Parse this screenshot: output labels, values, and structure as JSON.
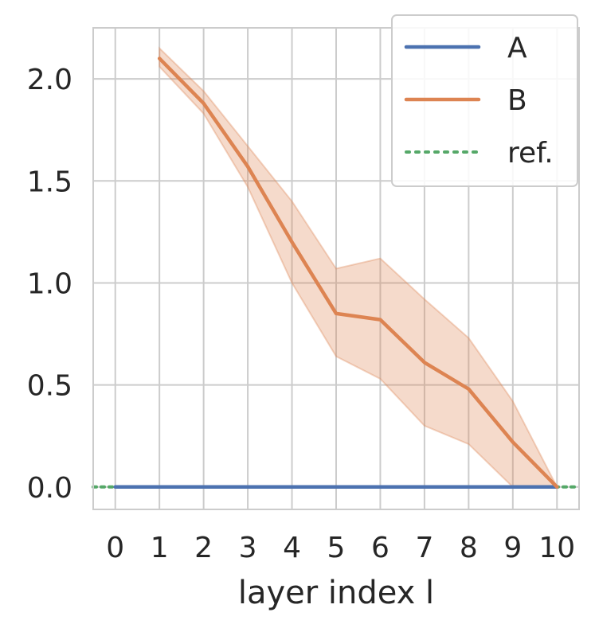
{
  "chart_data": {
    "type": "line",
    "title": "",
    "xlabel": "layer index l",
    "ylabel": "",
    "xlim": [
      -0.5,
      10.5
    ],
    "ylim": [
      -0.11,
      2.25
    ],
    "x_ticks": [
      0,
      1,
      2,
      3,
      4,
      5,
      6,
      7,
      8,
      9,
      10
    ],
    "y_ticks": [
      0.0,
      0.5,
      1.0,
      1.5,
      2.0
    ],
    "x_tick_labels": [
      "0",
      "1",
      "2",
      "3",
      "4",
      "5",
      "6",
      "7",
      "8",
      "9",
      "10"
    ],
    "y_tick_labels": [
      "0.0",
      "0.5",
      "1.0",
      "1.5",
      "2.0"
    ],
    "grid": true,
    "legend_position": "top-right",
    "series": [
      {
        "name": "A",
        "style": "solid",
        "color": "#4c72b0",
        "x": [
          0,
          1,
          2,
          3,
          4,
          5,
          6,
          7,
          8,
          9,
          10
        ],
        "y": [
          0,
          0,
          0,
          0,
          0,
          0,
          0,
          0,
          0,
          0,
          0
        ]
      },
      {
        "name": "B",
        "style": "solid",
        "color": "#dd8452",
        "band_color": "#dd8452",
        "x": [
          1,
          2,
          3,
          4,
          5,
          6,
          7,
          8,
          9,
          10
        ],
        "y": [
          2.1,
          1.88,
          1.57,
          1.2,
          0.85,
          0.82,
          0.61,
          0.48,
          0.22,
          0.0
        ],
        "lower": [
          2.06,
          1.83,
          1.47,
          1.0,
          0.64,
          0.53,
          0.3,
          0.21,
          0.0,
          0.0
        ],
        "upper": [
          2.15,
          1.94,
          1.67,
          1.4,
          1.07,
          1.12,
          0.92,
          0.73,
          0.42,
          0.0
        ]
      },
      {
        "name": "ref.",
        "style": "dotted",
        "color": "#55a868",
        "y_constant": 0.0
      }
    ]
  }
}
